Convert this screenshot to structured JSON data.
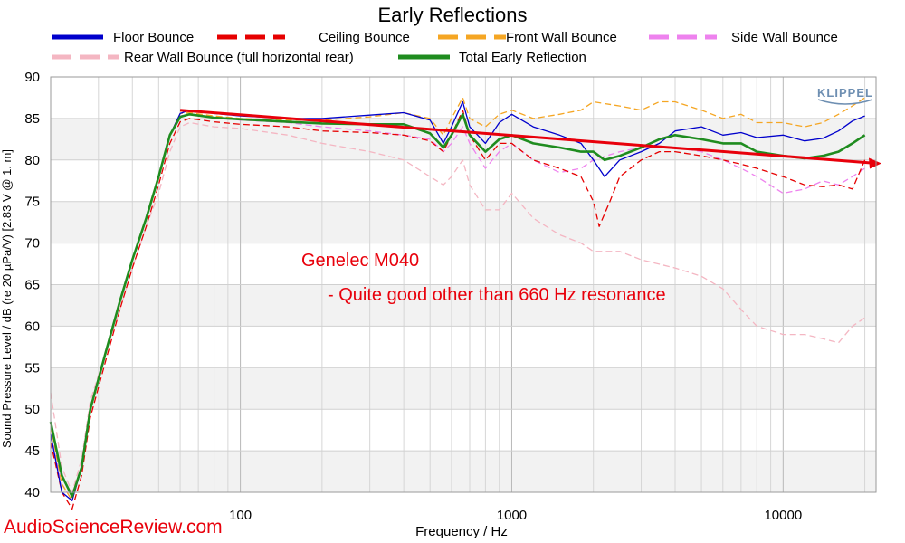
{
  "chart_data": {
    "type": "line",
    "title": "Early Reflections",
    "xlabel": "Frequency / Hz",
    "ylabel": "Sound Pressure Level / dB (re 20 µPa/V)  [2.83  V @ 1. m]",
    "x_scale": "log",
    "xlim": [
      20,
      22000
    ],
    "ylim": [
      40,
      90
    ],
    "x_ticks": [
      100,
      1000,
      10000
    ],
    "y_ticks": [
      40,
      45,
      50,
      55,
      60,
      65,
      70,
      75,
      80,
      85,
      90
    ],
    "grid": true,
    "legend_position": "top",
    "series": [
      {
        "name": "Floor Bounce",
        "color": "#0000cc",
        "style": "solid",
        "points": [
          [
            20,
            47
          ],
          [
            22,
            40
          ],
          [
            24,
            39
          ],
          [
            26,
            43
          ],
          [
            28,
            50
          ],
          [
            32,
            57
          ],
          [
            36,
            63
          ],
          [
            40,
            68
          ],
          [
            45,
            73
          ],
          [
            50,
            78
          ],
          [
            55,
            83
          ],
          [
            60,
            85.6
          ],
          [
            65,
            86
          ],
          [
            80,
            85.6
          ],
          [
            100,
            85.3
          ],
          [
            150,
            85
          ],
          [
            200,
            85
          ],
          [
            300,
            85.4
          ],
          [
            400,
            85.7
          ],
          [
            500,
            84.8
          ],
          [
            560,
            82
          ],
          [
            600,
            84
          ],
          [
            660,
            87
          ],
          [
            700,
            84
          ],
          [
            800,
            82
          ],
          [
            900,
            84.5
          ],
          [
            1000,
            85.5
          ],
          [
            1200,
            84
          ],
          [
            1500,
            83
          ],
          [
            1800,
            82
          ],
          [
            2000,
            80
          ],
          [
            2200,
            78
          ],
          [
            2500,
            80
          ],
          [
            3000,
            81
          ],
          [
            3500,
            82
          ],
          [
            4000,
            83.5
          ],
          [
            5000,
            84
          ],
          [
            6000,
            83
          ],
          [
            7000,
            83.3
          ],
          [
            8000,
            82.7
          ],
          [
            10000,
            83
          ],
          [
            12000,
            82.3
          ],
          [
            14000,
            82.6
          ],
          [
            16000,
            83.5
          ],
          [
            18000,
            84.7
          ],
          [
            20000,
            85.3
          ]
        ]
      },
      {
        "name": "Ceiling Bounce",
        "color": "#e60000",
        "style": "dashed",
        "points": [
          [
            20,
            46
          ],
          [
            22,
            40
          ],
          [
            24,
            38
          ],
          [
            26,
            42
          ],
          [
            28,
            49
          ],
          [
            32,
            56
          ],
          [
            36,
            62
          ],
          [
            40,
            67
          ],
          [
            45,
            72
          ],
          [
            50,
            77
          ],
          [
            55,
            82
          ],
          [
            60,
            84.6
          ],
          [
            65,
            85
          ],
          [
            80,
            84.6
          ],
          [
            100,
            84.3
          ],
          [
            150,
            84
          ],
          [
            200,
            83.5
          ],
          [
            300,
            83.3
          ],
          [
            400,
            83
          ],
          [
            500,
            82.3
          ],
          [
            560,
            81
          ],
          [
            600,
            83
          ],
          [
            660,
            86
          ],
          [
            700,
            83
          ],
          [
            800,
            80
          ],
          [
            900,
            82
          ],
          [
            1000,
            82
          ],
          [
            1200,
            80
          ],
          [
            1500,
            79
          ],
          [
            1800,
            78
          ],
          [
            2000,
            75
          ],
          [
            2100,
            72
          ],
          [
            2300,
            75
          ],
          [
            2500,
            78
          ],
          [
            3000,
            80
          ],
          [
            3500,
            81
          ],
          [
            4000,
            81
          ],
          [
            5000,
            80.5
          ],
          [
            6000,
            80
          ],
          [
            7000,
            79.5
          ],
          [
            8000,
            79
          ],
          [
            10000,
            78
          ],
          [
            12000,
            77
          ],
          [
            14000,
            76.8
          ],
          [
            16000,
            77
          ],
          [
            18000,
            76.5
          ],
          [
            20000,
            80
          ]
        ]
      },
      {
        "name": "Front Wall Bounce",
        "color": "#f5a623",
        "style": "dashed",
        "points": [
          [
            20,
            48
          ],
          [
            22,
            41
          ],
          [
            24,
            39
          ],
          [
            26,
            43
          ],
          [
            28,
            50
          ],
          [
            32,
            57
          ],
          [
            36,
            63
          ],
          [
            40,
            68
          ],
          [
            45,
            73
          ],
          [
            50,
            78
          ],
          [
            55,
            83
          ],
          [
            60,
            85.6
          ],
          [
            65,
            85.7
          ],
          [
            80,
            85.3
          ],
          [
            100,
            85
          ],
          [
            150,
            84.8
          ],
          [
            200,
            84.8
          ],
          [
            300,
            85.2
          ],
          [
            400,
            85.7
          ],
          [
            500,
            85
          ],
          [
            560,
            83
          ],
          [
            600,
            85
          ],
          [
            660,
            87.5
          ],
          [
            700,
            85
          ],
          [
            800,
            84
          ],
          [
            900,
            85.5
          ],
          [
            1000,
            86
          ],
          [
            1200,
            85
          ],
          [
            1500,
            85.5
          ],
          [
            1800,
            86
          ],
          [
            2000,
            87
          ],
          [
            2500,
            86.5
          ],
          [
            3000,
            86
          ],
          [
            3500,
            87
          ],
          [
            4000,
            87
          ],
          [
            5000,
            86
          ],
          [
            6000,
            85
          ],
          [
            7000,
            85.5
          ],
          [
            8000,
            84.5
          ],
          [
            10000,
            84.5
          ],
          [
            12000,
            84
          ],
          [
            14000,
            84.5
          ],
          [
            16000,
            85.5
          ],
          [
            18000,
            86.5
          ],
          [
            20000,
            87.5
          ]
        ]
      },
      {
        "name": "Side Wall Bounce",
        "color": "#ee82ee",
        "style": "dashed",
        "points": [
          [
            20,
            47
          ],
          [
            22,
            41
          ],
          [
            24,
            39
          ],
          [
            26,
            43
          ],
          [
            28,
            50
          ],
          [
            32,
            57
          ],
          [
            36,
            63
          ],
          [
            40,
            68
          ],
          [
            45,
            73
          ],
          [
            50,
            78
          ],
          [
            55,
            83
          ],
          [
            60,
            85.3
          ],
          [
            65,
            85.5
          ],
          [
            80,
            85.1
          ],
          [
            100,
            84.8
          ],
          [
            150,
            84.5
          ],
          [
            200,
            84
          ],
          [
            300,
            83.5
          ],
          [
            400,
            83
          ],
          [
            500,
            82.5
          ],
          [
            560,
            81
          ],
          [
            600,
            82
          ],
          [
            660,
            84
          ],
          [
            700,
            82
          ],
          [
            800,
            79
          ],
          [
            900,
            81
          ],
          [
            1000,
            82
          ],
          [
            1200,
            80
          ],
          [
            1500,
            78.5
          ],
          [
            1800,
            79
          ],
          [
            2000,
            80
          ],
          [
            2500,
            81
          ],
          [
            3000,
            81.5
          ],
          [
            4000,
            81.5
          ],
          [
            5000,
            81
          ],
          [
            6000,
            80
          ],
          [
            7000,
            79
          ],
          [
            8000,
            78
          ],
          [
            10000,
            76
          ],
          [
            12000,
            76.5
          ],
          [
            14000,
            77.5
          ],
          [
            16000,
            77
          ],
          [
            18000,
            78
          ],
          [
            20000,
            79
          ]
        ]
      },
      {
        "name": "Rear Wall Bounce (full horizontal rear)",
        "color": "#f4b6c2",
        "style": "dashed",
        "points": [
          [
            20,
            52
          ],
          [
            22,
            43
          ],
          [
            24,
            40
          ],
          [
            26,
            44
          ],
          [
            28,
            51
          ],
          [
            32,
            57
          ],
          [
            36,
            62
          ],
          [
            40,
            67
          ],
          [
            45,
            72
          ],
          [
            50,
            76
          ],
          [
            55,
            81
          ],
          [
            60,
            84
          ],
          [
            65,
            84.5
          ],
          [
            80,
            84
          ],
          [
            100,
            83.8
          ],
          [
            150,
            83
          ],
          [
            200,
            82
          ],
          [
            300,
            81
          ],
          [
            400,
            80
          ],
          [
            500,
            78
          ],
          [
            560,
            77
          ],
          [
            600,
            78
          ],
          [
            660,
            80
          ],
          [
            700,
            77
          ],
          [
            800,
            74
          ],
          [
            900,
            74
          ],
          [
            1000,
            76
          ],
          [
            1200,
            73
          ],
          [
            1500,
            71
          ],
          [
            1800,
            70
          ],
          [
            2000,
            69
          ],
          [
            2500,
            69
          ],
          [
            3000,
            68
          ],
          [
            4000,
            67
          ],
          [
            5000,
            66
          ],
          [
            6000,
            64.5
          ],
          [
            7000,
            62
          ],
          [
            8000,
            60
          ],
          [
            10000,
            59
          ],
          [
            12000,
            59
          ],
          [
            14000,
            58.5
          ],
          [
            16000,
            58
          ],
          [
            18000,
            60
          ],
          [
            20000,
            61
          ]
        ]
      },
      {
        "name": "Total Early Reflection",
        "color": "#1f8c1f",
        "style": "solid",
        "points": [
          [
            20,
            48.5
          ],
          [
            22,
            42
          ],
          [
            24,
            39.5
          ],
          [
            26,
            43
          ],
          [
            28,
            50
          ],
          [
            32,
            57
          ],
          [
            36,
            63
          ],
          [
            40,
            68
          ],
          [
            45,
            73
          ],
          [
            50,
            78
          ],
          [
            55,
            83
          ],
          [
            60,
            85.2
          ],
          [
            65,
            85.5
          ],
          [
            80,
            85.1
          ],
          [
            100,
            84.9
          ],
          [
            150,
            84.6
          ],
          [
            200,
            84.4
          ],
          [
            300,
            84.3
          ],
          [
            400,
            84.3
          ],
          [
            500,
            83.2
          ],
          [
            560,
            81.5
          ],
          [
            600,
            83
          ],
          [
            660,
            85.5
          ],
          [
            700,
            83
          ],
          [
            800,
            81
          ],
          [
            900,
            82.5
          ],
          [
            1000,
            83
          ],
          [
            1200,
            82
          ],
          [
            1500,
            81.5
          ],
          [
            1800,
            81
          ],
          [
            2000,
            81
          ],
          [
            2200,
            80
          ],
          [
            2500,
            80.5
          ],
          [
            3000,
            81.5
          ],
          [
            3500,
            82.5
          ],
          [
            4000,
            83
          ],
          [
            5000,
            82.5
          ],
          [
            6000,
            82
          ],
          [
            7000,
            82
          ],
          [
            8000,
            81
          ],
          [
            10000,
            80.5
          ],
          [
            12000,
            80.2
          ],
          [
            14000,
            80.5
          ],
          [
            16000,
            81
          ],
          [
            18000,
            82
          ],
          [
            20000,
            83
          ]
        ]
      }
    ],
    "annotations": [
      {
        "text": "Genelec M040",
        "color": "#e8000b"
      },
      {
        "text": "- Quite good other than 660 Hz resonance",
        "color": "#e8000b"
      }
    ],
    "trend_arrow": {
      "color": "#e8000b",
      "from": [
        60,
        86
      ],
      "to": [
        22000,
        79.6
      ]
    }
  },
  "watermark": "AudioScienceReview.com",
  "logo_text": "KLIPPEL"
}
